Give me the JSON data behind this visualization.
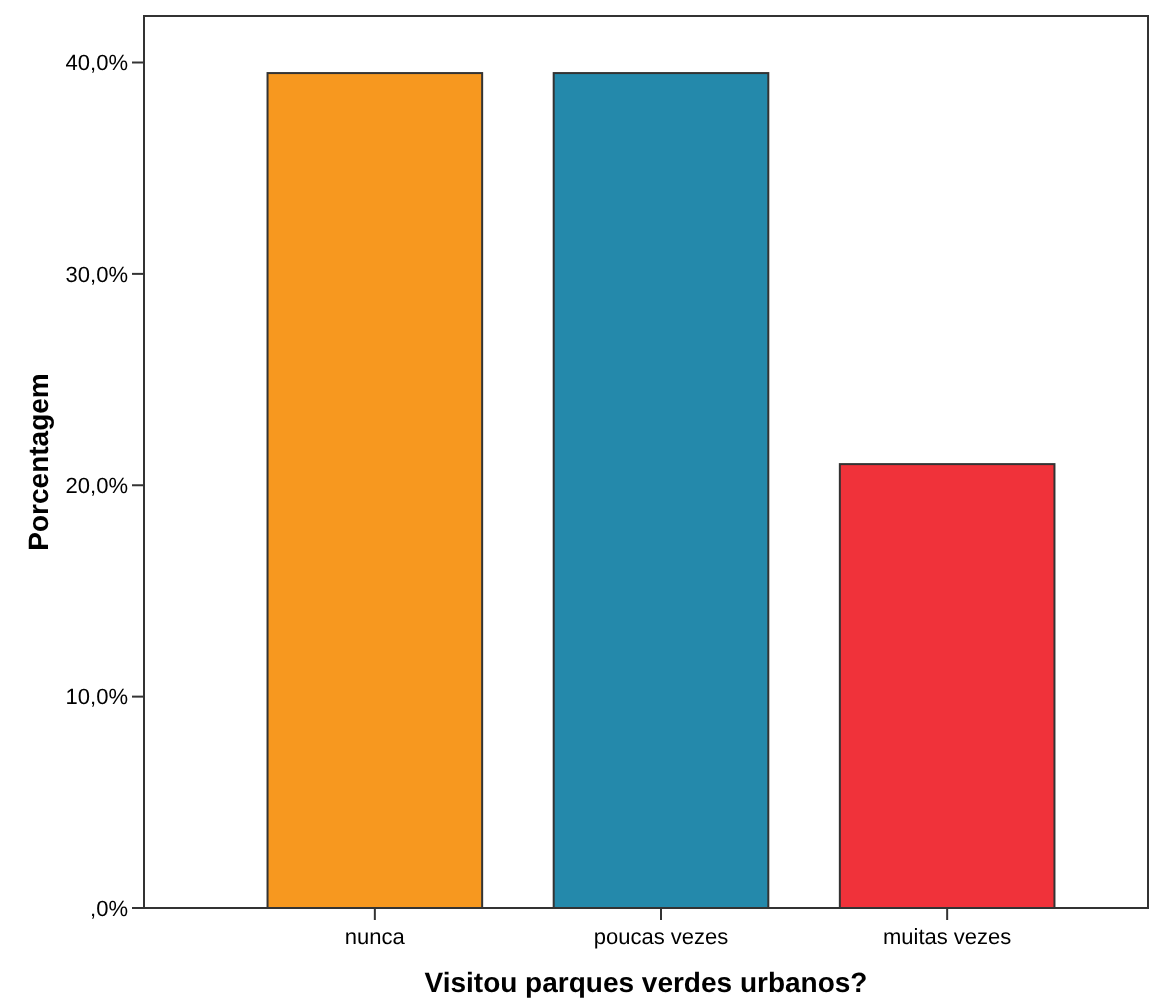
{
  "chart_data": {
    "type": "bar",
    "xlabel": "Visitou parques verdes urbanos?",
    "ylabel": "Porcentagem",
    "categories": [
      "nunca",
      "poucas vezes",
      "muitas vezes"
    ],
    "values": [
      39.5,
      39.5,
      21.0
    ],
    "colors": [
      "#f7981f",
      "#2489ab",
      "#f0323a"
    ],
    "ylim": [
      0,
      42.2
    ],
    "yticks": [
      {
        "value": 0,
        "label": ",0%"
      },
      {
        "value": 10,
        "label": "10,0%"
      },
      {
        "value": 20,
        "label": "20,0%"
      },
      {
        "value": 30,
        "label": "30,0%"
      },
      {
        "value": 40,
        "label": "40,0%"
      }
    ],
    "grid": false
  }
}
